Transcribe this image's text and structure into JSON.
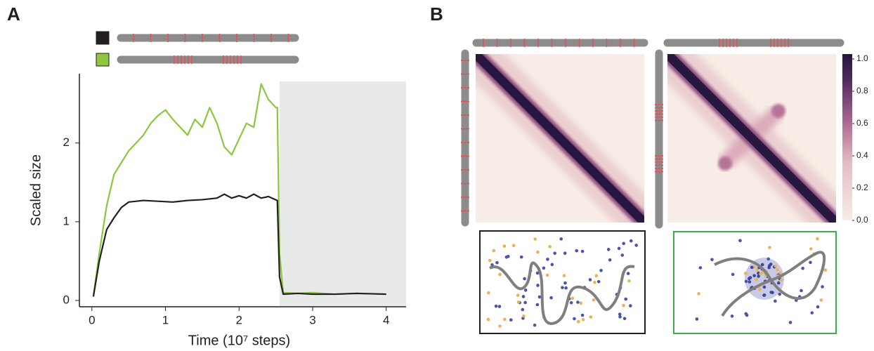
{
  "panel_labels": [
    "A",
    "B"
  ],
  "chart_data": {
    "type": "line",
    "xlabel": "Time (10⁷ steps)",
    "ylabel": "Scaled size",
    "xlim": [
      -0.17,
      4.27
    ],
    "ylim": [
      -0.08,
      2.88
    ],
    "xticks": [
      0,
      1,
      2,
      3,
      4
    ],
    "yticks": [
      0,
      1,
      2
    ],
    "shaded_xrange": [
      2.55,
      4.27
    ],
    "series": [
      {
        "color": "#231f20",
        "x": [
          0.02,
          0.1,
          0.2,
          0.3,
          0.4,
          0.5,
          0.7,
          0.9,
          1.1,
          1.3,
          1.5,
          1.7,
          1.8,
          1.9,
          2.0,
          2.1,
          2.2,
          2.3,
          2.4,
          2.52,
          2.55,
          2.6,
          2.8,
          3.0,
          3.3,
          3.6,
          4.0
        ],
        "values": [
          0.05,
          0.5,
          0.9,
          1.05,
          1.18,
          1.25,
          1.27,
          1.26,
          1.25,
          1.27,
          1.28,
          1.3,
          1.35,
          1.3,
          1.33,
          1.3,
          1.35,
          1.3,
          1.32,
          1.27,
          0.3,
          0.08,
          0.09,
          0.08,
          0.08,
          0.09,
          0.08
        ]
      },
      {
        "color": "#8dc63f",
        "x": [
          0.02,
          0.1,
          0.2,
          0.3,
          0.4,
          0.5,
          0.6,
          0.7,
          0.8,
          0.9,
          1.0,
          1.1,
          1.2,
          1.3,
          1.4,
          1.5,
          1.6,
          1.7,
          1.8,
          1.9,
          2.0,
          2.1,
          2.2,
          2.3,
          2.4,
          2.5,
          2.52,
          2.55,
          2.6,
          2.8,
          3.0,
          3.3,
          3.6,
          4.0
        ],
        "values": [
          0.05,
          0.6,
          1.2,
          1.6,
          1.75,
          1.9,
          2.0,
          2.1,
          2.25,
          2.35,
          2.42,
          2.3,
          2.2,
          2.1,
          2.3,
          2.2,
          2.45,
          2.25,
          1.95,
          1.85,
          2.05,
          2.25,
          2.2,
          2.75,
          2.55,
          2.45,
          2.45,
          0.6,
          0.1,
          0.09,
          0.1,
          0.08,
          0.09,
          0.08
        ]
      }
    ]
  },
  "colorbar": {
    "lim": [
      0,
      1
    ],
    "ticks": [
      {
        "value": 0,
        "label": "0.0"
      },
      {
        "value": 0.2,
        "label": "0.2"
      },
      {
        "value": 0.4,
        "label": "0.4"
      },
      {
        "value": 0.6,
        "label": "0.6"
      },
      {
        "value": 0.8,
        "label": "0.8"
      },
      {
        "value": 1,
        "label": "1.0"
      }
    ]
  }
}
